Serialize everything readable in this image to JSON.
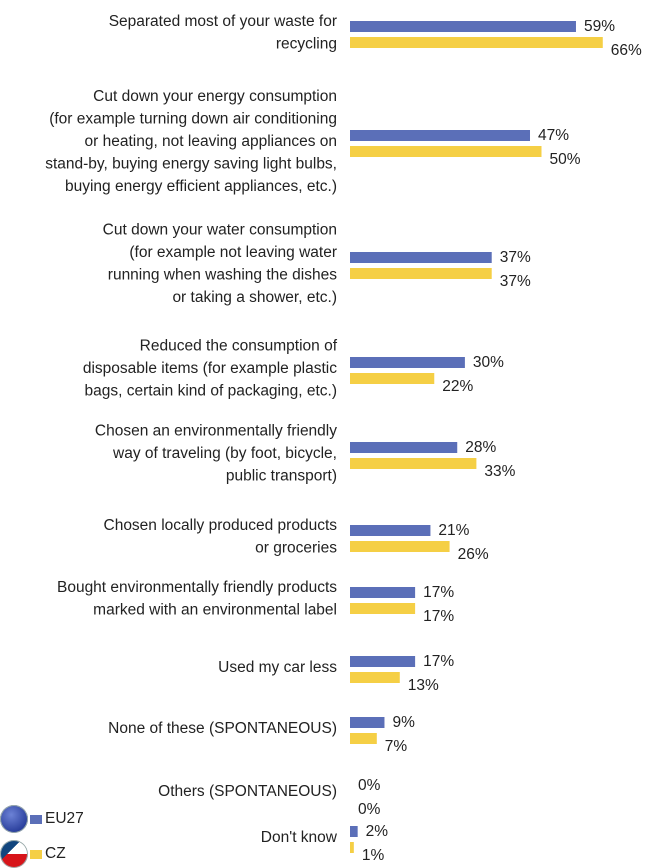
{
  "chart_data": {
    "type": "bar",
    "orientation": "horizontal",
    "categories": [
      [
        "Separated most of your waste for",
        "recycling"
      ],
      [
        "Cut down your energy consumption",
        "(for example turning down air conditioning",
        "or heating, not leaving appliances on",
        "stand-by, buying energy saving light bulbs,",
        "buying energy efficient appliances, etc.)"
      ],
      [
        "Cut down your water consumption",
        "(for example not leaving water",
        "running when washing the dishes",
        "or taking a shower, etc.)"
      ],
      [
        "Reduced the consumption of",
        "disposable items (for example plastic",
        "bags, certain kind of packaging, etc.)"
      ],
      [
        "Chosen an environmentally friendly",
        "way of traveling (by foot, bicycle,",
        "public transport)"
      ],
      [
        "Chosen locally produced products",
        "or groceries"
      ],
      [
        "Bought environmentally friendly products",
        "marked with an environmental label"
      ],
      [
        "Used my car less"
      ],
      [
        "None of these (SPONTANEOUS)"
      ],
      [
        "Others (SPONTANEOUS)"
      ],
      [
        "Don't know"
      ]
    ],
    "series": [
      {
        "name": "EU27",
        "color": "#5b6fb8",
        "values": [
          59,
          47,
          37,
          30,
          28,
          21,
          17,
          17,
          9,
          0,
          2
        ],
        "labels": [
          "59%",
          "47%",
          "37%",
          "30%",
          "28%",
          "21%",
          "17%",
          "17%",
          "9%",
          "0%",
          "2%"
        ]
      },
      {
        "name": "CZ",
        "color": "#f5cf45",
        "values": [
          66,
          50,
          37,
          22,
          33,
          26,
          17,
          13,
          7,
          0,
          1
        ],
        "labels": [
          "66%",
          "50%",
          "37%",
          "22%",
          "33%",
          "26%",
          "17%",
          "13%",
          "7%",
          "0%",
          "1%"
        ]
      }
    ],
    "xlim": [
      0,
      100
    ],
    "legend_position": "bottom-left",
    "grid": false
  },
  "colors": {
    "eu_flag": "#2a3f9c",
    "cz_flag_top": "#ffffff",
    "cz_flag_bottom": "#d7141a",
    "cz_flag_triangle": "#11457e"
  }
}
